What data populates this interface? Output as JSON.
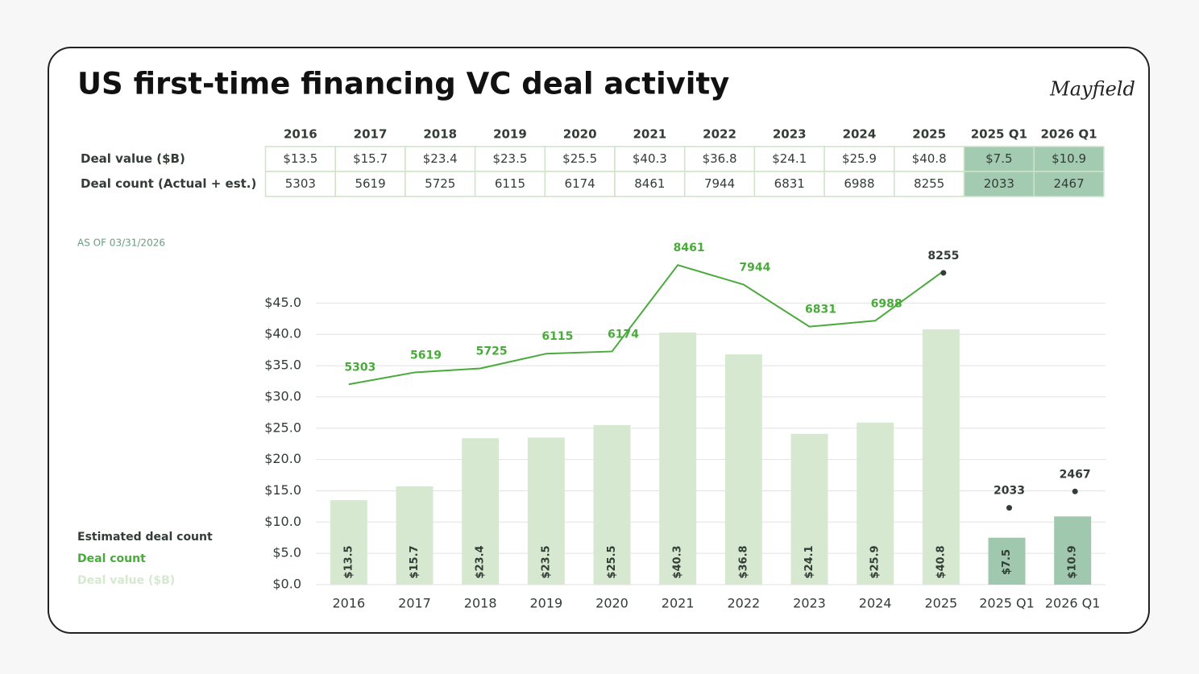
{
  "header": {
    "title": "US first-time financing VC deal activity",
    "logo": "Mayfield"
  },
  "table": {
    "columns": [
      "2016",
      "2017",
      "2018",
      "2019",
      "2020",
      "2021",
      "2022",
      "2023",
      "2024",
      "2025",
      "2025 Q1",
      "2026 Q1"
    ],
    "rows": [
      {
        "label": "Deal value ($B)",
        "cells": [
          "$13.5",
          "$15.7",
          "$23.4",
          "$23.5",
          "$25.5",
          "$40.3",
          "$36.8",
          "$24.1",
          "$25.9",
          "$40.8",
          "$7.5",
          "$10.9"
        ]
      },
      {
        "label": "Deal count (Actual + est.)",
        "cells": [
          "5303",
          "5619",
          "5725",
          "6115",
          "6174",
          "8461",
          "7944",
          "6831",
          "6988",
          "8255",
          "2033",
          "2467"
        ]
      }
    ]
  },
  "note": "AS OF 03/31/2026",
  "chart_data": {
    "type": "bar",
    "categories": [
      "2016",
      "2017",
      "2018",
      "2019",
      "2020",
      "2021",
      "2022",
      "2023",
      "2024",
      "2025",
      "2025 Q1",
      "2026 Q1"
    ],
    "series": [
      {
        "name": "Deal value ($B)",
        "type": "bar",
        "color": "#d6e9d0",
        "colors": [
          "#d6e9d0",
          "#d6e9d0",
          "#d6e9d0",
          "#d6e9d0",
          "#d6e9d0",
          "#d6e9d0",
          "#d6e9d0",
          "#d6e9d0",
          "#d6e9d0",
          "#d6e9d0",
          "#9fc8ae",
          "#9fc8ae"
        ],
        "values": [
          13.5,
          15.7,
          23.4,
          23.5,
          25.5,
          40.3,
          36.8,
          24.1,
          25.9,
          40.8,
          7.5,
          10.9
        ],
        "value_labels": [
          "$13.5",
          "$15.7",
          "$23.4",
          "$23.5",
          "$25.5",
          "$40.3",
          "$36.8",
          "$24.1",
          "$25.9",
          "$40.8",
          "$7.5",
          "$10.9"
        ]
      },
      {
        "name": "Deal count",
        "type": "line",
        "axis": "y2",
        "color": "#4aaa3c",
        "values": [
          5303,
          5619,
          5725,
          6115,
          6174,
          8461,
          7944,
          6831,
          6988,
          8255,
          null,
          null
        ]
      },
      {
        "name": "Estimated deal count",
        "type": "point",
        "axis": "y2",
        "color": "#333c36",
        "values": [
          null,
          null,
          null,
          null,
          null,
          null,
          null,
          null,
          null,
          8255,
          2033,
          2467
        ]
      }
    ],
    "ylim": [
      0,
      52
    ],
    "yticks": [
      {
        "value": 0,
        "label": "$0.0"
      },
      {
        "value": 5,
        "label": "$5.0"
      },
      {
        "value": 10,
        "label": "$10.0"
      },
      {
        "value": 15,
        "label": "$15.0"
      },
      {
        "value": 20,
        "label": "$20.0"
      },
      {
        "value": 25,
        "label": "$25.0"
      },
      {
        "value": 30,
        "label": "$30.0"
      },
      {
        "value": 35,
        "label": "$35.0"
      },
      {
        "value": 40,
        "label": "$40.0"
      },
      {
        "value": 45,
        "label": "$45.0"
      }
    ],
    "y2lim": [
      0,
      8614
    ],
    "grid": true
  }
}
